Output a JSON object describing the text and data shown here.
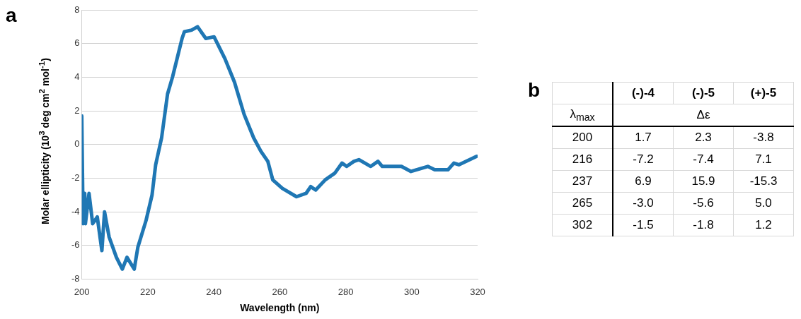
{
  "chart_data": [
    {
      "type": "line",
      "xlabel": "Wavelength (nm)",
      "ylabel": "Molar ellipticity (10$^{3}$ deg cm$^{2}$ mol$^{-1}$)",
      "annotations": [
        "a"
      ],
      "x": [
        200,
        200.4,
        200.9,
        201.1,
        202.2,
        203.3,
        204.7,
        206.1,
        206.9,
        208.3,
        210.5,
        212.3,
        213.7,
        215.9,
        217.0,
        219.5,
        221.3,
        222.4,
        224.2,
        226.0,
        227.5,
        230.4,
        231.1,
        233.3,
        235.1,
        237.6,
        240.1,
        243.4,
        246.3,
        249.2,
        252.1,
        254.3,
        256.4,
        257.9,
        260.8,
        265.1,
        268.0,
        269.4,
        270.9,
        273.8,
        276.7,
        278.9,
        280.3,
        282.5,
        284.0,
        287.6,
        289.8,
        291.1,
        296.9,
        299.8,
        304.9,
        307.0,
        311.0,
        312.8,
        314.3,
        319.7
      ],
      "series": [
        {
          "color": "#1f77b4",
          "values": [
            1.7,
            -4.7,
            -2.9,
            -4.7,
            -2.9,
            -4.7,
            -4.3,
            -6.3,
            -4.0,
            -5.5,
            -6.7,
            -7.4,
            -6.7,
            -7.4,
            -6.1,
            -4.5,
            -3.0,
            -1.2,
            0.4,
            3.0,
            4.0,
            6.3,
            6.7,
            6.8,
            7.0,
            6.3,
            6.4,
            5.1,
            3.7,
            1.8,
            0.4,
            -0.4,
            -1.0,
            -2.1,
            -2.6,
            -3.1,
            -2.9,
            -2.5,
            -2.7,
            -2.1,
            -1.7,
            -1.1,
            -1.3,
            -1.0,
            -0.9,
            -1.3,
            -1.0,
            -1.3,
            -1.3,
            -1.6,
            -1.3,
            -1.5,
            -1.5,
            -1.1,
            -1.2,
            -0.7
          ]
        }
      ],
      "xlim": [
        200,
        320
      ],
      "xticks": [
        200,
        220,
        240,
        260,
        280,
        300,
        320
      ],
      "ylim": [
        -8,
        8
      ],
      "yticks": [
        -8,
        -6,
        -4,
        -2,
        0,
        2,
        4,
        6,
        8
      ],
      "grid": "y",
      "legend": false
    },
    {
      "type": "heatmap",
      "data_labels": true,
      "annotations": [
        "b"
      ],
      "xlabel": "Δε",
      "ylabel": "λ$_{max}$",
      "categories": [
        "(-)-4",
        "(-)-5",
        "(+)-5"
      ],
      "y_categories": [
        "200",
        "216",
        "237",
        "265",
        "302"
      ],
      "cells": [
        [
          1.7,
          2.3,
          -3.8
        ],
        [
          -7.2,
          -7.4,
          7.1
        ],
        [
          6.9,
          15.9,
          -15.3
        ],
        [
          -3.0,
          -5.6,
          5.0
        ],
        [
          -1.5,
          -1.8,
          1.2
        ]
      ],
      "cell_labels": [
        [
          "1.7",
          "2.3",
          "-3.8"
        ],
        [
          "-7.2",
          "-7.4",
          "7.1"
        ],
        [
          "6.9",
          "15.9",
          "-15.3"
        ],
        [
          "-3.0",
          "-5.6",
          "5.0"
        ],
        [
          "-1.5",
          "-1.8",
          "1.2"
        ]
      ]
    }
  ]
}
